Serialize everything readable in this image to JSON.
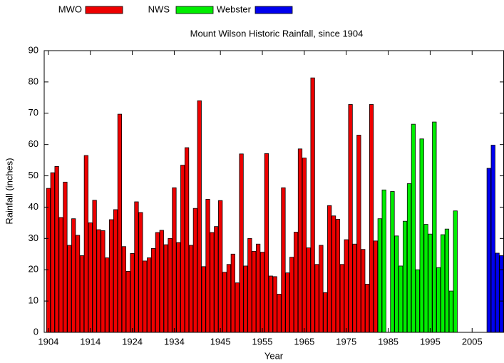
{
  "chart_data": {
    "type": "bar",
    "title": "Mount Wilson Historic Rainfall, since 1904",
    "x_label": "Year",
    "y_label": "Rainfall (inches)",
    "xlim": [
      1903,
      2012.6
    ],
    "ylim": [
      0,
      90
    ],
    "xticks": [
      1904,
      1914,
      1924,
      1934,
      1945,
      1955,
      1965,
      1975,
      1985,
      1995,
      2005
    ],
    "yticks": [
      0,
      10,
      20,
      30,
      40,
      50,
      60,
      70,
      80,
      90
    ],
    "legend": "top",
    "series": [
      {
        "name": "MWO",
        "color": "#ee0000",
        "x": [
          1904,
          1905,
          1906,
          1907,
          1908,
          1909,
          1910,
          1911,
          1912,
          1913,
          1914,
          1915,
          1916,
          1917,
          1918,
          1919,
          1920,
          1921,
          1922,
          1923,
          1924,
          1925,
          1926,
          1927,
          1928,
          1929,
          1930,
          1931,
          1932,
          1933,
          1934,
          1935,
          1936,
          1937,
          1938,
          1939,
          1940,
          1941,
          1942,
          1943,
          1944,
          1945,
          1946,
          1947,
          1948,
          1949,
          1950,
          1951,
          1952,
          1953,
          1954,
          1955,
          1956,
          1957,
          1958,
          1959,
          1960,
          1961,
          1962,
          1963,
          1964,
          1965,
          1966,
          1967,
          1968,
          1969,
          1970,
          1971,
          1972,
          1973,
          1974,
          1975,
          1976,
          1977,
          1978,
          1979,
          1980,
          1981,
          1982
        ],
        "values": [
          46,
          51,
          53,
          36.7,
          48,
          27.8,
          36.3,
          31,
          24.5,
          56.5,
          35,
          42.2,
          32.8,
          32.5,
          23.8,
          36,
          39.2,
          69.7,
          27.4,
          19.5,
          25.2,
          41.7,
          38.3,
          22.8,
          23.8,
          26.8,
          31.9,
          32.6,
          28,
          30,
          46.2,
          28.7,
          53.4,
          59,
          27.8,
          39.6,
          74,
          21,
          42.5,
          31.9,
          33.8,
          42.1,
          19.2,
          21.7,
          25,
          15.8,
          57,
          21.2,
          30,
          25.9,
          28.2,
          25.6,
          57.1,
          18,
          17.8,
          12.2,
          46.2,
          19,
          24,
          32,
          58.6,
          55.7,
          27,
          81.3,
          21.7,
          27.8,
          12.7,
          40.5,
          37.2,
          36.1,
          21.7,
          29.6,
          72.8,
          28.2,
          63,
          26.5,
          15.4,
          72.8,
          29.2
        ]
      },
      {
        "name": "NWS",
        "color": "#00ee00",
        "x": [
          1983,
          1984,
          1985,
          1986,
          1987,
          1988,
          1989,
          1990,
          1991,
          1992,
          1993,
          1994,
          1995,
          1996,
          1997,
          1998,
          1999,
          2000,
          2001
        ],
        "values": [
          36.3,
          45.5,
          null,
          45,
          30.8,
          21.2,
          35.5,
          47.5,
          66.5,
          20,
          61.8,
          34.5,
          31.4,
          67.2,
          20.7,
          31.2,
          33,
          13.2,
          38.8
        ]
      },
      {
        "name": "Webster",
        "color": "#0000ee",
        "x": [
          2009,
          2010,
          2011,
          2012
        ],
        "values": [
          52.4,
          59.8,
          25.3,
          24.5
        ]
      }
    ]
  }
}
